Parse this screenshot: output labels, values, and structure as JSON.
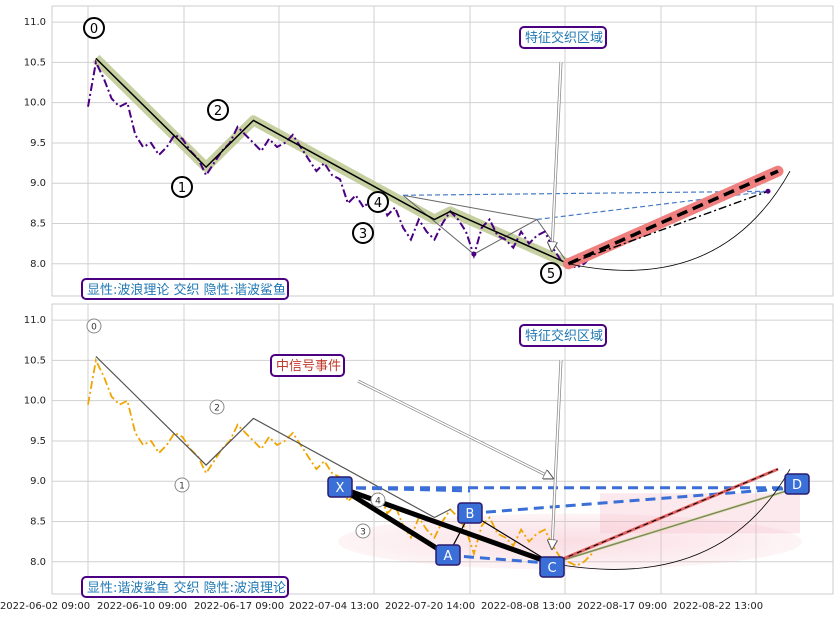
{
  "chart_data": [
    {
      "type": "line",
      "panel": "top",
      "ylim": [
        7.6,
        11.2
      ],
      "yticks": [
        8.0,
        8.5,
        9.0,
        9.5,
        10.0,
        10.5,
        11.0
      ],
      "ytick_labels": [
        "8.0",
        "8.5",
        "9.0",
        "9.5",
        "10.0",
        "10.5",
        "11.0"
      ],
      "grid": true,
      "caption": "显性:波浪理论 交织 隐性:谐波鲨鱼",
      "annotation": "特征交织区域",
      "price_series": [
        9.95,
        10.5,
        10.3,
        10.05,
        9.95,
        10.0,
        9.6,
        9.45,
        9.5,
        9.35,
        9.45,
        9.6,
        9.55,
        9.4,
        9.3,
        9.1,
        9.25,
        9.4,
        9.5,
        9.7,
        9.6,
        9.5,
        9.4,
        9.55,
        9.45,
        9.5,
        9.6,
        9.45,
        9.3,
        9.15,
        9.25,
        9.1,
        9.05,
        8.75,
        8.85,
        8.7,
        8.8,
        8.85,
        8.6,
        8.7,
        8.45,
        8.3,
        8.55,
        8.4,
        8.3,
        8.5,
        8.65,
        8.55,
        8.4,
        8.1,
        8.45,
        8.55,
        8.35,
        8.3,
        8.2,
        8.4,
        8.25,
        8.35,
        8.4,
        8.2,
        8.05,
        8.0,
        7.95,
        8.0,
        8.1
      ],
      "wave_points": [
        {
          "label": "0",
          "price": 10.55
        },
        {
          "label": "1",
          "price": 9.2
        },
        {
          "label": "2",
          "price": 9.78
        },
        {
          "label": "3",
          "price": 8.55
        },
        {
          "label": "4",
          "price": 8.65
        },
        {
          "label": "5",
          "price": 8.0
        }
      ],
      "projection_end_price": 9.15,
      "dashdot_end_price": 8.9
    },
    {
      "type": "line",
      "panel": "bottom",
      "ylim": [
        7.6,
        11.2
      ],
      "yticks": [
        8.0,
        8.5,
        9.0,
        9.5,
        10.0,
        10.5,
        11.0
      ],
      "ytick_labels": [
        "8.0",
        "8.5",
        "9.0",
        "9.5",
        "10.0",
        "10.5",
        "11.0"
      ],
      "grid": true,
      "caption": "显性:谐波鲨鱼 交织 隐性:波浪理论",
      "annotations": [
        "特征交织区域",
        "中信号事件"
      ],
      "wave_labels": [
        "0",
        "1",
        "2",
        "3",
        "4"
      ],
      "harmonic_points": [
        {
          "label": "X",
          "price": 8.92
        },
        {
          "label": "A",
          "price": 8.08
        },
        {
          "label": "B",
          "price": 8.6
        },
        {
          "label": "C",
          "price": 7.98
        },
        {
          "label": "D",
          "price": 8.92
        }
      ]
    }
  ],
  "xaxis": {
    "tick_labels": [
      "2022-06-02 09:00",
      "2022-06-10 09:00",
      "2022-06-17 09:00",
      "2022-07-04 13:00",
      "2022-07-20 14:00",
      "2022-08-08 13:00",
      "2022-08-17 09:00",
      "2022-08-22 13:00"
    ]
  },
  "colors": {
    "price_top": "#4b0082",
    "price_bottom": "#f0a500",
    "wave_band": "#b8c48a",
    "projection": "#f08080",
    "harmonic_box": "#3a6fd8",
    "harmonic_dash": "#3a6fd8",
    "caption_text": "#1f77b4",
    "caption_border": "#4b0082",
    "event_text": "#c0392b"
  }
}
